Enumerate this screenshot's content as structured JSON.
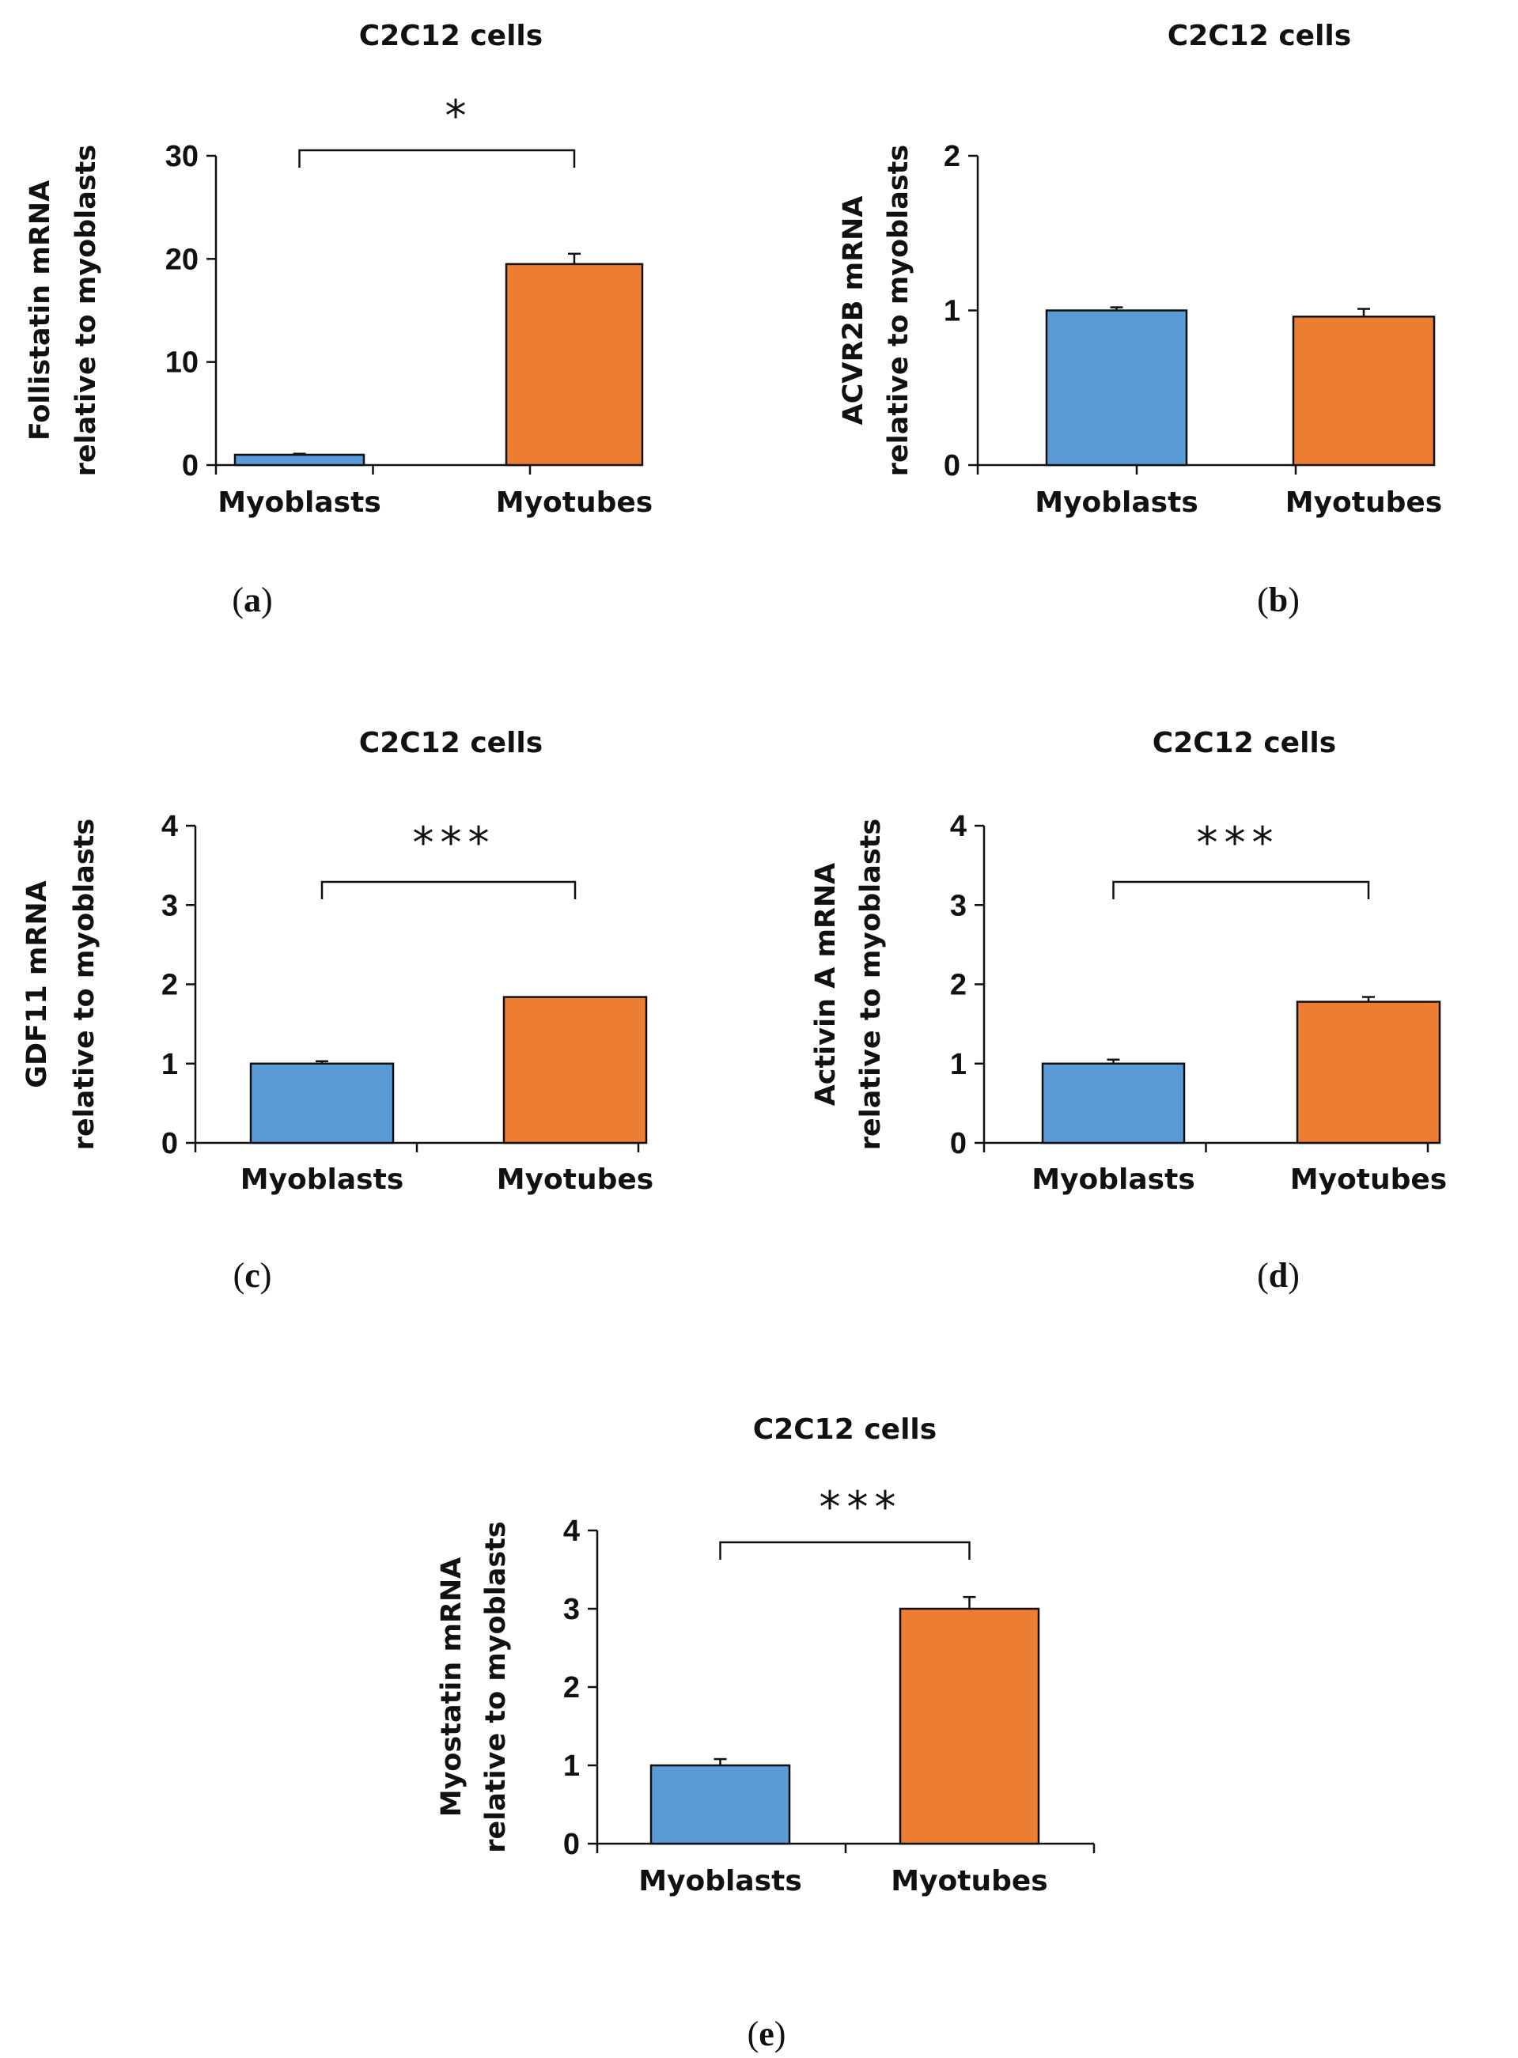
{
  "colors": {
    "myoblasts": "#5b9bd5",
    "myotubes": "#ed7d31",
    "axis": "#111111",
    "bar_edge": "#111111"
  },
  "chart_data": [
    {
      "panel": "(a)",
      "panel_letter": "a",
      "type": "bar",
      "title": "C2C12 cells",
      "ylabel_line1": "Follistatin mRNA",
      "ylabel_line2": "relative to myoblasts",
      "categories": [
        "Myoblasts",
        "Myotubes"
      ],
      "values": [
        1,
        19.5
      ],
      "errors": [
        0.1,
        1.0
      ],
      "ylim": [
        0,
        30
      ],
      "yticks": [
        0,
        10,
        20,
        30
      ],
      "significance": "*"
    },
    {
      "panel": "(b)",
      "panel_letter": "b",
      "type": "bar",
      "title": "C2C12 cells",
      "ylabel_line1": "ACVR2B mRNA",
      "ylabel_line2": "relative to myoblasts",
      "categories": [
        "Myoblasts",
        "Myotubes"
      ],
      "values": [
        1.0,
        0.96
      ],
      "errors": [
        0.02,
        0.05
      ],
      "ylim": [
        0,
        2
      ],
      "yticks": [
        0,
        1,
        2
      ],
      "significance": ""
    },
    {
      "panel": "(c)",
      "panel_letter": "c",
      "type": "bar",
      "title": "C2C12 cells",
      "ylabel_line1": "GDF11 mRNA",
      "ylabel_line2": "relative to myoblasts",
      "categories": [
        "Myoblasts",
        "Myotubes"
      ],
      "values": [
        1.0,
        1.84
      ],
      "errors": [
        0.03,
        0.0
      ],
      "ylim": [
        0,
        4
      ],
      "yticks": [
        0,
        1,
        2,
        3,
        4
      ],
      "significance": "***"
    },
    {
      "panel": "(d)",
      "panel_letter": "d",
      "type": "bar",
      "title": "C2C12 cells",
      "ylabel_line1": "Activin A mRNA",
      "ylabel_line2": "relative to myoblasts",
      "categories": [
        "Myoblasts",
        "Myotubes"
      ],
      "values": [
        1.0,
        1.78
      ],
      "errors": [
        0.05,
        0.06
      ],
      "ylim": [
        0,
        4
      ],
      "yticks": [
        0,
        1,
        2,
        3,
        4
      ],
      "significance": "***"
    },
    {
      "panel": "(e)",
      "panel_letter": "e",
      "type": "bar",
      "title": "C2C12 cells",
      "ylabel_line1": "Myostatin mRNA",
      "ylabel_line2": "relative to myoblasts",
      "categories": [
        "Myoblasts",
        "Myotubes"
      ],
      "values": [
        1.0,
        3.0
      ],
      "errors": [
        0.08,
        0.15
      ],
      "ylim": [
        0,
        4
      ],
      "yticks": [
        0,
        1,
        2,
        3,
        4
      ],
      "significance": "***"
    }
  ]
}
